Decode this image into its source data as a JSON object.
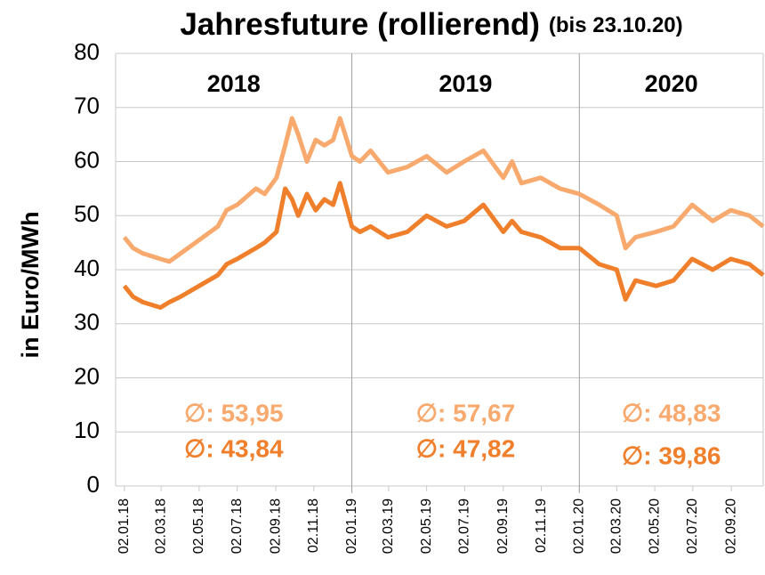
{
  "chart_data": {
    "type": "line",
    "title": "Jahresfuture (rollierend)",
    "subtitle": "(bis 23.10.20)",
    "y_label": "in Euro/MWh",
    "x": [
      "02.01.18",
      "16.01.18",
      "01.02.18",
      "01.03.18",
      "15.03.18",
      "02.04.18",
      "02.05.18",
      "01.06.18",
      "15.06.18",
      "02.07.18",
      "01.08.18",
      "15.08.18",
      "03.09.18",
      "17.09.18",
      "28.09.18",
      "08.10.18",
      "22.10.18",
      "05.11.18",
      "19.11.18",
      "03.12.18",
      "14.12.18",
      "02.01.19",
      "15.01.19",
      "01.02.19",
      "01.03.19",
      "01.04.19",
      "02.05.19",
      "03.06.19",
      "01.07.19",
      "01.08.19",
      "02.09.19",
      "16.09.19",
      "01.10.19",
      "01.11.19",
      "02.12.19",
      "02.01.20",
      "03.02.20",
      "02.03.20",
      "16.03.20",
      "01.04.20",
      "04.05.20",
      "01.06.20",
      "01.07.20",
      "03.08.20",
      "01.09.20",
      "01.10.20",
      "23.10.20"
    ],
    "series": [
      {
        "color": "#F8A96E",
        "values": [
          46,
          44,
          43,
          42,
          41.5,
          43,
          45.5,
          48,
          51,
          52,
          55,
          54,
          57,
          63,
          68,
          65,
          60,
          64,
          63,
          64,
          68,
          61,
          60,
          62,
          58,
          59,
          61,
          58,
          60,
          62,
          57,
          60,
          56,
          57,
          55,
          54,
          52,
          50,
          44,
          46,
          47,
          48,
          52,
          49,
          51,
          50,
          48
        ]
      },
      {
        "color": "#F07F2C",
        "values": [
          37,
          35,
          34,
          33,
          34,
          35,
          37,
          39,
          41,
          42,
          44,
          45,
          47,
          55,
          53,
          50,
          54,
          51,
          53,
          52,
          56,
          48,
          47,
          48,
          46,
          47,
          50,
          48,
          49,
          52,
          47,
          49,
          47,
          46,
          44,
          44,
          41,
          40,
          34.5,
          38,
          37,
          38,
          42,
          40,
          42,
          41,
          39
        ]
      }
    ],
    "xlim": [
      "19.12.17",
      "23.10.20"
    ],
    "xticks": [
      "02.01.18",
      "02.03.18",
      "02.05.18",
      "02.07.18",
      "02.09.18",
      "02.11.18",
      "02.01.19",
      "02.03.19",
      "02.05.19",
      "02.07.19",
      "02.09.19",
      "02.11.19",
      "02.01.20",
      "02.03.20",
      "02.05.20",
      "02.07.20",
      "02.09.20"
    ],
    "ylim": [
      0,
      80
    ],
    "yticks": [
      0,
      10,
      20,
      30,
      40,
      50,
      60,
      70,
      80
    ],
    "grid": true,
    "dividers": [
      "02.01.19",
      "02.01.20"
    ],
    "periods": [
      {
        "label": "2018",
        "averages": [
          "∅: 53,95",
          "∅: 43,84"
        ]
      },
      {
        "label": "2019",
        "averages": [
          "∅: 57,67",
          "∅: 47,82"
        ]
      },
      {
        "label": "2020",
        "averages": [
          "∅: 48,83",
          "∅: 39,86"
        ]
      }
    ]
  }
}
